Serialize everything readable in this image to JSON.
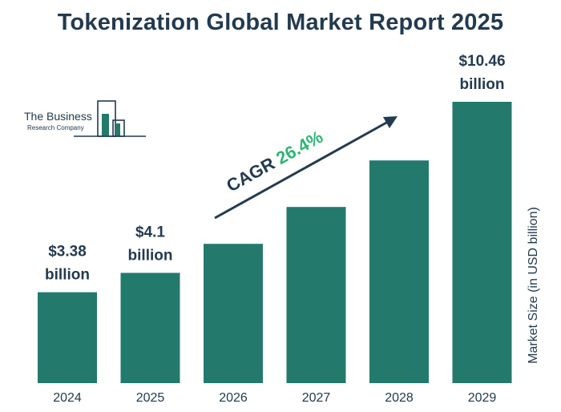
{
  "title": "Tokenization Global Market Report 2025",
  "logo": {
    "line1": "The Business",
    "line2": "Research Company"
  },
  "colors": {
    "bar": "#237a6c",
    "text": "#233a4f",
    "cagr_value": "#2bb673",
    "arrow": "#233a4f"
  },
  "chart_data": {
    "type": "bar",
    "title": "Tokenization Global Market Report 2025",
    "categories": [
      "2024",
      "2025",
      "2026",
      "2027",
      "2028",
      "2029"
    ],
    "values": [
      3.38,
      4.1,
      5.18,
      6.55,
      8.28,
      10.46
    ],
    "ylabel": "Market Size (in USD billion)",
    "ylim": [
      0,
      12
    ],
    "grid": false,
    "data_labels": [
      {
        "index": 0,
        "lines": [
          "$3.38",
          "billion"
        ]
      },
      {
        "index": 1,
        "lines": [
          "$4.1",
          "billion"
        ]
      },
      {
        "index": 5,
        "lines": [
          "$10.46",
          "billion"
        ]
      }
    ],
    "annotation": {
      "prefix": "CAGR ",
      "value": "26.4%"
    }
  }
}
